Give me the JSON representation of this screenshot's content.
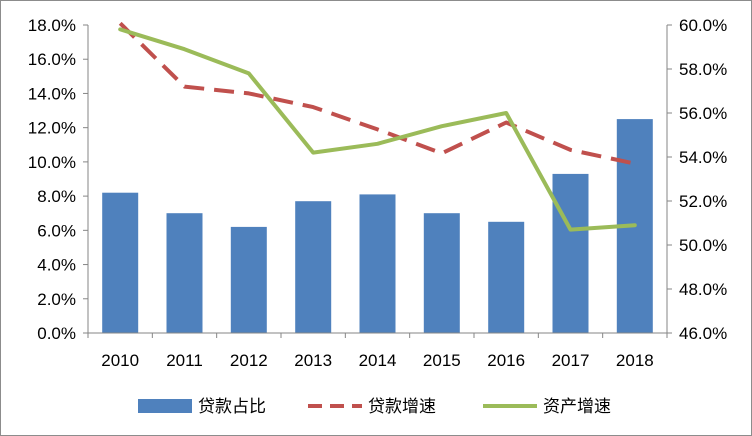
{
  "chart_data": {
    "type": "bar+line",
    "categories": [
      "2010",
      "2011",
      "2012",
      "2013",
      "2014",
      "2015",
      "2016",
      "2017",
      "2018"
    ],
    "series": [
      {
        "name": "贷款占比",
        "kind": "bar",
        "axis": "left",
        "color": "#4f81bd",
        "values": [
          8.2,
          7.0,
          6.2,
          7.7,
          8.1,
          7.0,
          6.5,
          9.3,
          12.5
        ]
      },
      {
        "name": "贷款增速",
        "kind": "line",
        "style": "dashed",
        "axis": "left",
        "color": "#c0504d",
        "values": [
          18.1,
          14.4,
          14.0,
          13.2,
          11.9,
          10.5,
          12.3,
          10.7,
          9.9
        ]
      },
      {
        "name": "资产增速",
        "kind": "line",
        "style": "solid",
        "axis": "right",
        "color": "#9bbb59",
        "values": [
          59.8,
          58.9,
          57.8,
          54.2,
          54.6,
          55.4,
          56.0,
          50.7,
          50.9
        ]
      }
    ],
    "y_left": {
      "min": 0,
      "max": 18,
      "step": 2,
      "tick_labels": [
        "0.0%",
        "2.0%",
        "4.0%",
        "6.0%",
        "8.0%",
        "10.0%",
        "12.0%",
        "14.0%",
        "16.0%",
        "18.0%"
      ]
    },
    "y_right": {
      "min": 46,
      "max": 60,
      "step": 2,
      "tick_labels": [
        "46.0%",
        "48.0%",
        "50.0%",
        "52.0%",
        "54.0%",
        "56.0%",
        "58.0%",
        "60.0%"
      ]
    },
    "legend": {
      "position": "bottom",
      "items": [
        "贷款占比",
        "贷款增速",
        "资产增速"
      ]
    },
    "grid": false
  }
}
